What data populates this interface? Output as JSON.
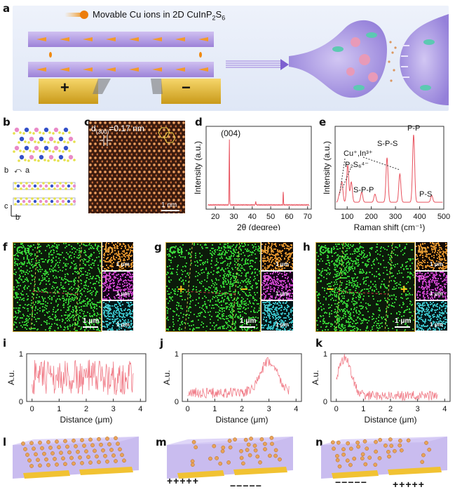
{
  "panels": {
    "a": "a",
    "b": "b",
    "c": "c",
    "d": "d",
    "e": "e",
    "f": "f",
    "g": "g",
    "h": "h",
    "i": "i",
    "j": "j",
    "k": "k",
    "l": "l",
    "m": "m",
    "n": "n"
  },
  "panel_a": {
    "legend_text": "Movable Cu ions in 2D CuInP",
    "legend_sub1": "2",
    "legend_mid": "S",
    "legend_sub2": "6",
    "plus": "+",
    "minus": "−"
  },
  "panel_b": {
    "axis_b": "b",
    "axis_a": "a",
    "axis_c": "c",
    "axis_b2": "b"
  },
  "panel_c": {
    "d_label": "d",
    "d_sub": "(300)",
    "d_value": "=0.17 nm",
    "scale": "1 nm"
  },
  "chart_data": [
    {
      "type": "line",
      "panel": "d",
      "annotation": "(004)",
      "xlabel": "2θ (degree)",
      "ylabel": "Intensity (a.u.)",
      "xlim": [
        15,
        72
      ],
      "xticks": [
        20,
        30,
        40,
        50,
        60,
        70
      ],
      "peaks": [
        {
          "x": 27.6,
          "y": 1.0
        },
        {
          "x": 41.9,
          "y": 0.06
        },
        {
          "x": 56.8,
          "y": 0.19
        }
      ],
      "color": "#e8535f"
    },
    {
      "type": "line",
      "panel": "e",
      "xlabel": "Raman shift (cm⁻¹)",
      "ylabel": "Intensity (a.u.)",
      "xlim": [
        50,
        500
      ],
      "xticks": [
        100,
        200,
        300,
        400,
        500
      ],
      "annotations": [
        "Cu⁺,In³⁺",
        "P₂S₆⁴⁻",
        "S-P-P",
        "S-P-S",
        "P-P",
        "P-S"
      ],
      "peaks": [
        {
          "x": 68,
          "y": 0.12
        },
        {
          "x": 78,
          "y": 0.3
        },
        {
          "x": 102,
          "y": 0.55
        },
        {
          "x": 117,
          "y": 0.3
        },
        {
          "x": 160,
          "y": 0.15
        },
        {
          "x": 215,
          "y": 0.12
        },
        {
          "x": 265,
          "y": 0.66
        },
        {
          "x": 318,
          "y": 0.42
        },
        {
          "x": 375,
          "y": 1.0
        },
        {
          "x": 450,
          "y": 0.1
        }
      ],
      "color": "#e8535f"
    },
    {
      "type": "line",
      "panel": "i",
      "xlabel": "Distance (μm)",
      "ylabel": "A.u.",
      "xlim": [
        -0.2,
        4.2
      ],
      "ylim": [
        0,
        1
      ],
      "xticks": [
        0,
        1,
        2,
        3,
        4
      ],
      "yticks": [
        0,
        1
      ],
      "profile": "uniform",
      "color": "#f07a86"
    },
    {
      "type": "line",
      "panel": "j",
      "xlabel": "Distance (μm)",
      "ylabel": "A.u.",
      "xlim": [
        -0.2,
        4.2
      ],
      "ylim": [
        0,
        1
      ],
      "xticks": [
        0,
        1,
        2,
        3,
        4
      ],
      "yticks": [
        0,
        1
      ],
      "profile": "peak-right",
      "peak_x": 3.0,
      "color": "#f07a86"
    },
    {
      "type": "line",
      "panel": "k",
      "xlabel": "Distance (μm)",
      "ylabel": "A.u.",
      "xlim": [
        -0.2,
        4.2
      ],
      "ylim": [
        0,
        1
      ],
      "xticks": [
        0,
        1,
        2,
        3,
        4
      ],
      "yticks": [
        0,
        1
      ],
      "profile": "peak-left",
      "peak_x": 0.3,
      "color": "#f07a86"
    }
  ],
  "maps": {
    "cu": "Cu",
    "in": "In",
    "p": "P",
    "s": "S",
    "scale_big": "1 μm",
    "scale_small": "1 μm",
    "g_left": "+",
    "g_right": "−",
    "h_left": "−",
    "h_right": "+"
  },
  "devices": {
    "m_left": "+++++",
    "m_right": "−−−−−",
    "n_left": "−−−−−",
    "n_right": "+++++"
  }
}
